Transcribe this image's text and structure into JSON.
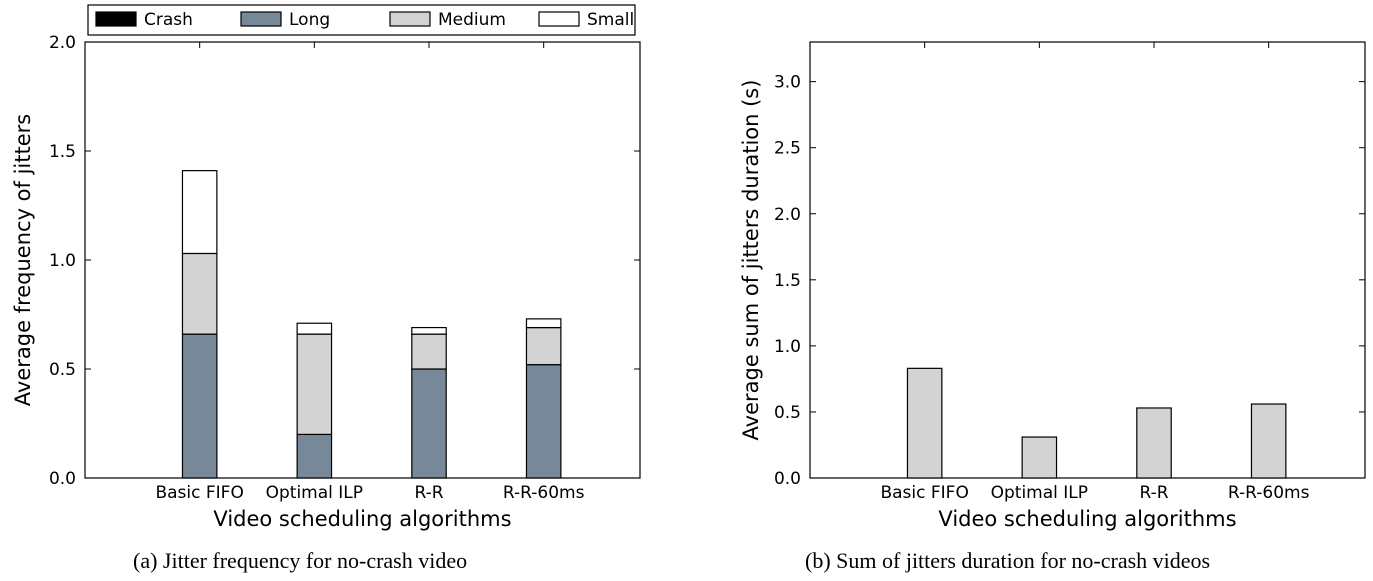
{
  "chart_data": [
    {
      "type": "bar",
      "stacked": true,
      "categories": [
        "Basic FIFO",
        "Optimal ILP",
        "R-R",
        "R-R-60ms"
      ],
      "series": [
        {
          "name": "Crash",
          "values": [
            0,
            0,
            0,
            0
          ],
          "color": "#000000"
        },
        {
          "name": "Long",
          "values": [
            0.66,
            0.2,
            0.5,
            0.52
          ],
          "color": "#778899"
        },
        {
          "name": "Medium",
          "values": [
            0.37,
            0.46,
            0.16,
            0.17
          ],
          "color": "#d3d3d3"
        },
        {
          "name": "Small",
          "values": [
            0.38,
            0.05,
            0.03,
            0.04
          ],
          "color": "#ffffff"
        }
      ],
      "xlabel": "Video scheduling algorithms",
      "ylabel": "Average frequency of jitters",
      "ylim": [
        0,
        2.0
      ],
      "yticks": [
        "0.0",
        "0.5",
        "1.0",
        "1.5",
        "2.0"
      ],
      "legend": "top",
      "caption": "(a) Jitter frequency for no-crash video"
    },
    {
      "type": "bar",
      "categories": [
        "Basic FIFO",
        "Optimal ILP",
        "R-R",
        "R-R-60ms"
      ],
      "values": [
        0.83,
        0.31,
        0.53,
        0.56
      ],
      "color": "#d3d3d3",
      "xlabel": "Video scheduling algorithms",
      "ylabel": "Average sum of jitters duration (s)",
      "ylim": [
        0,
        3.3
      ],
      "yticks": [
        "0.0",
        "0.5",
        "1.0",
        "1.5",
        "2.0",
        "2.5",
        "3.0"
      ],
      "caption": "(b) Sum of jitters duration for no-crash videos"
    }
  ]
}
